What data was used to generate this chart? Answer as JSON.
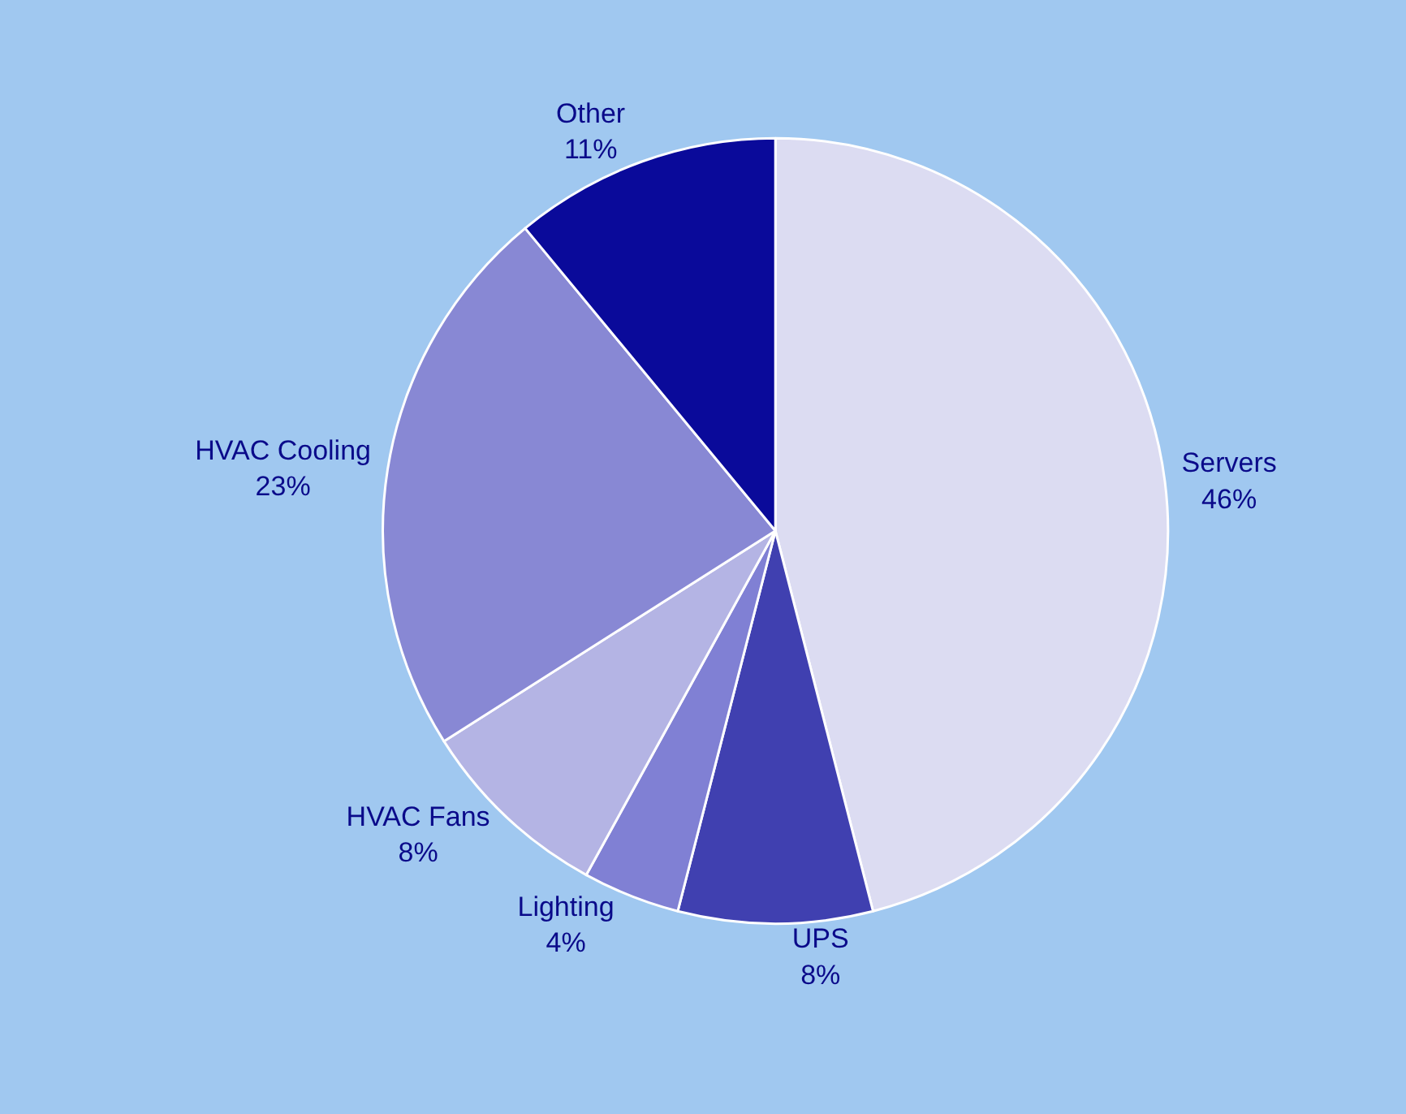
{
  "chart_data": {
    "type": "pie",
    "categories": [
      "Servers",
      "UPS",
      "Lighting",
      "HVAC Fans",
      "HVAC Cooling",
      "Other"
    ],
    "values": [
      46,
      8,
      4,
      8,
      23,
      11
    ],
    "value_labels": [
      "46%",
      "8%",
      "4%",
      "8%",
      "23%",
      "11%"
    ],
    "colors": [
      "#dcdcf2",
      "#4040b0",
      "#8080d4",
      "#b4b4e4",
      "#8888d4",
      "#0a0a9a"
    ],
    "legend": false
  }
}
